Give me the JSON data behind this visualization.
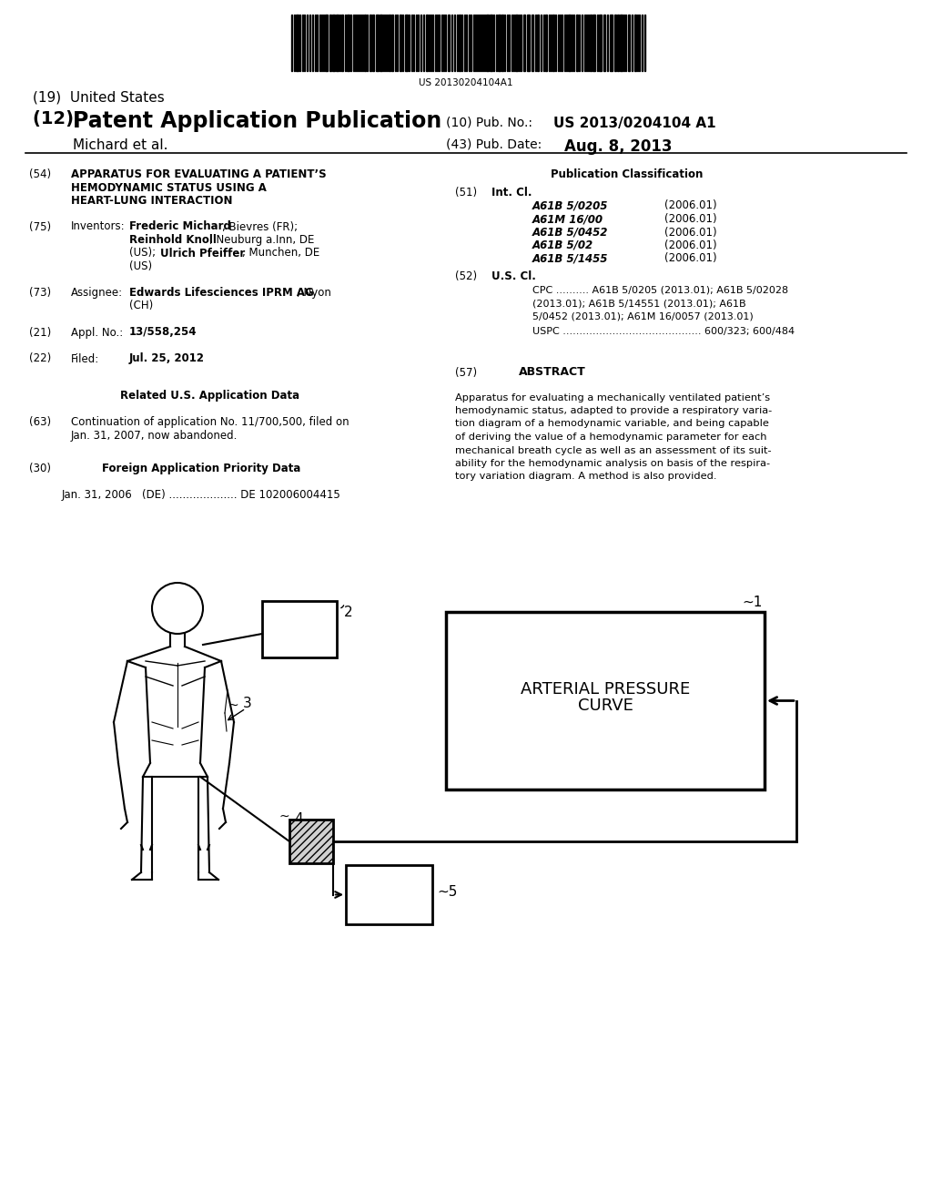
{
  "bg_color": "#ffffff",
  "barcode_text": "US 20130204104A1",
  "title_19": "(19)  United States",
  "title_12_prefix": "(12) ",
  "title_12_main": "Patent Application Publication",
  "pub_no_label": "(10) Pub. No.:",
  "pub_no": "US 2013/0204104 A1",
  "inventor_label": "Michard et al.",
  "pub_date_label": "(43) Pub. Date:",
  "pub_date": "Aug. 8, 2013",
  "section54_num": "(54)",
  "section54_lines": [
    "APPARATUS FOR EVALUATING A PATIENT’S",
    "HEMODYNAMIC STATUS USING A",
    "HEART-LUNG INTERACTION"
  ],
  "section75_num": "(75)",
  "section75_label": "Inventors:",
  "section73_num": "(73)",
  "section73_label": "Assignee:",
  "section21_num": "(21)",
  "section21_label": "Appl. No.:",
  "section21_text": "13/558,254",
  "section22_num": "(22)",
  "section22_label": "Filed:",
  "section22_text": "Jul. 25, 2012",
  "related_header": "Related U.S. Application Data",
  "section63_num": "(63)",
  "section63_lines": [
    "Continuation of application No. 11/700,500, filed on",
    "Jan. 31, 2007, now abandoned."
  ],
  "section30_num": "(30)",
  "section30_label": "Foreign Application Priority Data",
  "section30_text": "Jan. 31, 2006   (DE) .................... DE 102006004415",
  "pub_class_header": "Publication Classification",
  "section51_num": "(51)",
  "section51_label": "Int. Cl.",
  "int_cl_entries": [
    [
      "A61B 5/0205",
      "(2006.01)"
    ],
    [
      "A61M 16/00",
      "(2006.01)"
    ],
    [
      "A61B 5/0452",
      "(2006.01)"
    ],
    [
      "A61B 5/02",
      "(2006.01)"
    ],
    [
      "A61B 5/1455",
      "(2006.01)"
    ]
  ],
  "section52_num": "(52)",
  "section52_label": "U.S. Cl.",
  "cpc_lines": [
    "CPC .......... A61B 5/0205 (2013.01); A61B 5/02028",
    "(2013.01); A61B 5/14551 (2013.01); A61B",
    "5/0452 (2013.01); A61M 16/0057 (2013.01)"
  ],
  "uspc_text": "USPC .......................................... 600/323; 600/484",
  "section57_num": "(57)",
  "section57_label": "ABSTRACT",
  "abstract_lines": [
    "Apparatus for evaluating a mechanically ventilated patient’s",
    "hemodynamic status, adapted to provide a respiratory varia-",
    "tion diagram of a hemodynamic variable, and being capable",
    "of deriving the value of a hemodynamic parameter for each",
    "mechanical breath cycle as well as an assessment of its suit-",
    "ability for the hemodynamic analysis on basis of the respira-",
    "tory variation diagram. A method is also provided."
  ],
  "diagram_label1": "1",
  "diagram_label2": "2",
  "diagram_label3": "3",
  "diagram_label4": "4",
  "diagram_label5": "5",
  "arterial_pressure_line1": "ARTERIAL PRESSURE",
  "arterial_pressure_line2": "CURVE"
}
